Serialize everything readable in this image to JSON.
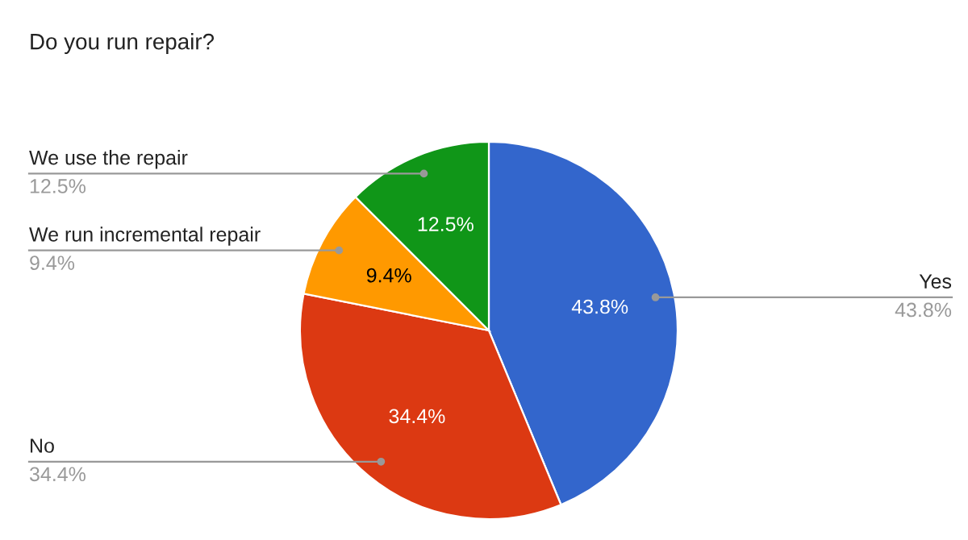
{
  "chart_data": {
    "type": "pie",
    "title": "Do you run repair?",
    "categories": [
      "Yes",
      "No",
      "We run incremental repair",
      "We use the repair"
    ],
    "values": [
      43.8,
      34.4,
      9.4,
      12.5
    ],
    "colors": [
      "#3366cc",
      "#dc3912",
      "#ff9900",
      "#109618"
    ],
    "value_labels": [
      "43.8%",
      "34.4%",
      "9.4%",
      "12.5%"
    ],
    "legend": false
  }
}
